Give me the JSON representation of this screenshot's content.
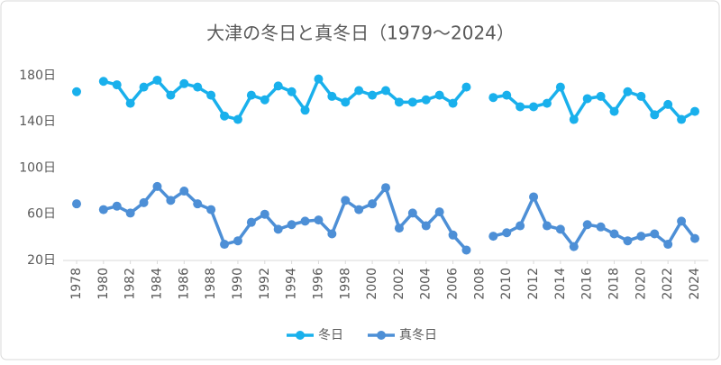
{
  "chart_data": {
    "type": "line",
    "title": "大津の冬日と真冬日（1979～2024）",
    "x": [
      1978,
      1979,
      1980,
      1981,
      1982,
      1983,
      1984,
      1985,
      1986,
      1987,
      1988,
      1989,
      1990,
      1991,
      1992,
      1993,
      1994,
      1995,
      1996,
      1997,
      1998,
      1999,
      2000,
      2001,
      2002,
      2003,
      2004,
      2005,
      2006,
      2007,
      2008,
      2009,
      2010,
      2011,
      2012,
      2013,
      2014,
      2015,
      2016,
      2017,
      2018,
      2019,
      2020,
      2021,
      2022,
      2023,
      2024
    ],
    "series": [
      {
        "name": "冬日",
        "color": "#19b0ec",
        "values": [
          166,
          null,
          175,
          172,
          156,
          170,
          176,
          163,
          173,
          170,
          163,
          145,
          142,
          163,
          159,
          171,
          166,
          150,
          177,
          162,
          157,
          167,
          163,
          167,
          157,
          157,
          159,
          163,
          156,
          170,
          null,
          161,
          163,
          153,
          153,
          156,
          170,
          142,
          160,
          162,
          149,
          166,
          162,
          146,
          155,
          142,
          149
        ]
      },
      {
        "name": "真冬日",
        "color": "#4d8fd6",
        "values": [
          69,
          null,
          64,
          67,
          61,
          70,
          84,
          72,
          80,
          69,
          64,
          34,
          37,
          53,
          60,
          47,
          51,
          54,
          55,
          43,
          72,
          64,
          69,
          83,
          48,
          61,
          50,
          62,
          42,
          29,
          null,
          41,
          44,
          50,
          75,
          50,
          47,
          32,
          51,
          49,
          43,
          37,
          41,
          43,
          34,
          54,
          39
        ]
      }
    ],
    "xlim": [
      1978,
      2024
    ],
    "xticks": [
      1978,
      1980,
      1982,
      1984,
      1986,
      1988,
      1990,
      1992,
      1994,
      1996,
      1998,
      2000,
      2002,
      2004,
      2006,
      2008,
      2010,
      2012,
      2014,
      2016,
      2018,
      2020,
      2022,
      2024
    ],
    "ylim": [
      20,
      190
    ],
    "yticks": [
      {
        "value": 20,
        "label": "20日"
      },
      {
        "value": 60,
        "label": "60日"
      },
      {
        "value": 100,
        "label": "100日"
      },
      {
        "value": 140,
        "label": "140日"
      },
      {
        "value": 180,
        "label": "180日"
      }
    ],
    "legend": "bottom"
  }
}
